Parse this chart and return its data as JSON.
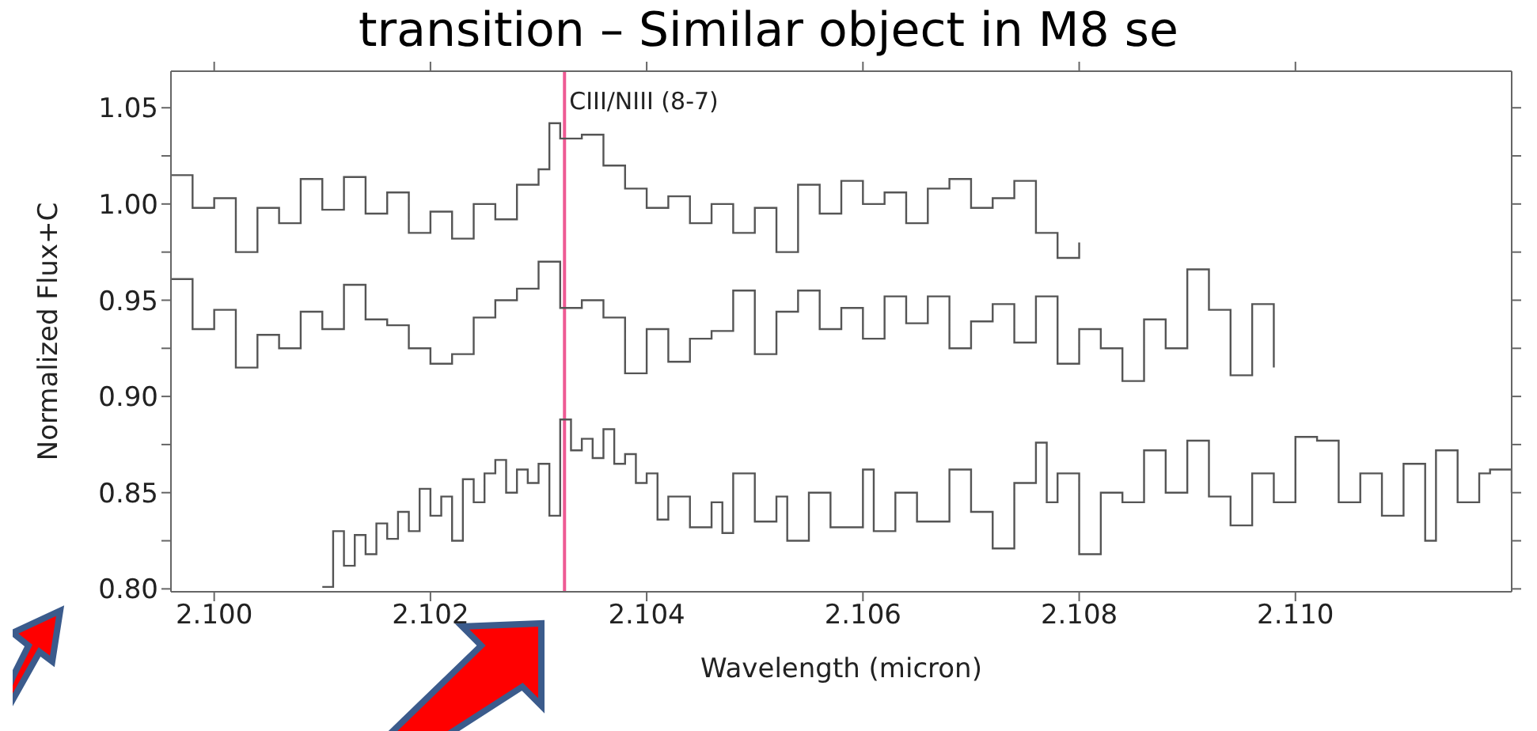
{
  "chart_data": {
    "type": "step",
    "title": "transition – Similar object in M8 se",
    "xlabel": "Wavelength (micron)",
    "ylabel": "Normalized Flux+C",
    "xlim": [
      2.0996,
      2.112
    ],
    "xticks": [
      {
        "value": 2.1,
        "label": "2.100"
      },
      {
        "value": 2.102,
        "label": "2.102"
      },
      {
        "value": 2.104,
        "label": "2.104"
      },
      {
        "value": 2.106,
        "label": "2.106"
      },
      {
        "value": 2.108,
        "label": "2.108"
      },
      {
        "value": 2.11,
        "label": "2.110"
      }
    ],
    "ylim": [
      0.7985,
      1.069
    ],
    "yticks": [
      {
        "value": 0.8,
        "label": "0.80"
      },
      {
        "value": 0.825,
        "label": null
      },
      {
        "value": 0.85,
        "label": "0.85"
      },
      {
        "value": 0.875,
        "label": null
      },
      {
        "value": 0.9,
        "label": "0.90"
      },
      {
        "value": 0.925,
        "label": null
      },
      {
        "value": 0.95,
        "label": "0.95"
      },
      {
        "value": 0.975,
        "label": null
      },
      {
        "value": 1.0,
        "label": "1.00"
      },
      {
        "value": 1.025,
        "label": null
      },
      {
        "value": 1.05,
        "label": "1.05"
      }
    ],
    "legend": false,
    "ref_lines": [
      {
        "axis": "x",
        "value": 2.10324,
        "label": "CIII/NIII (8-7)",
        "color": "#ee5a94"
      }
    ],
    "series": [
      {
        "color": "#555555",
        "x": [
          2.0996,
          2.0998,
          2.1,
          2.1002,
          2.1004,
          2.1006,
          2.1008,
          2.101,
          2.1012,
          2.1014,
          2.1016,
          2.1018,
          2.102,
          2.1022,
          2.1024,
          2.1026,
          2.1028,
          2.103,
          2.1031,
          2.1032,
          2.1034,
          2.1036,
          2.1038,
          2.104,
          2.1042,
          2.1044,
          2.1046,
          2.1048,
          2.105,
          2.1052,
          2.1054,
          2.1056,
          2.1058,
          2.106,
          2.1062,
          2.1064,
          2.1066,
          2.1068,
          2.107,
          2.1072,
          2.1074,
          2.1076,
          2.1078,
          2.108
        ],
        "values": [
          1.015,
          0.998,
          1.003,
          0.975,
          0.998,
          0.99,
          1.013,
          0.997,
          1.014,
          0.995,
          1.006,
          0.985,
          0.996,
          0.982,
          1.0,
          0.992,
          1.01,
          1.018,
          1.042,
          1.034,
          1.036,
          1.02,
          1.008,
          0.998,
          1.004,
          0.99,
          1.0,
          0.985,
          0.998,
          0.975,
          1.01,
          0.995,
          1.012,
          1.0,
          1.006,
          0.99,
          1.008,
          1.013,
          0.998,
          1.003,
          1.012,
          0.985,
          0.972,
          0.98
        ]
      },
      {
        "color": "#555555",
        "x": [
          2.0996,
          2.0998,
          2.1,
          2.1002,
          2.1004,
          2.1006,
          2.1008,
          2.101,
          2.1012,
          2.1014,
          2.1016,
          2.1018,
          2.102,
          2.1022,
          2.1024,
          2.1026,
          2.1028,
          2.103,
          2.1032,
          2.1034,
          2.1036,
          2.1038,
          2.104,
          2.1042,
          2.1044,
          2.1046,
          2.1048,
          2.105,
          2.1052,
          2.1054,
          2.1056,
          2.1058,
          2.106,
          2.1062,
          2.1064,
          2.1066,
          2.1068,
          2.107,
          2.1072,
          2.1074,
          2.1076,
          2.1078,
          2.108,
          2.1082,
          2.1084,
          2.1086,
          2.1088,
          2.109,
          2.1092,
          2.1094,
          2.1096,
          2.1098
        ],
        "values": [
          0.961,
          0.935,
          0.945,
          0.915,
          0.932,
          0.925,
          0.944,
          0.935,
          0.958,
          0.94,
          0.937,
          0.925,
          0.917,
          0.922,
          0.941,
          0.95,
          0.956,
          0.97,
          0.946,
          0.95,
          0.941,
          0.912,
          0.935,
          0.918,
          0.93,
          0.934,
          0.955,
          0.922,
          0.944,
          0.955,
          0.935,
          0.946,
          0.93,
          0.952,
          0.938,
          0.952,
          0.925,
          0.939,
          0.948,
          0.928,
          0.952,
          0.917,
          0.935,
          0.925,
          0.908,
          0.94,
          0.925,
          0.966,
          0.945,
          0.911,
          0.948,
          0.915
        ]
      },
      {
        "color": "#555555",
        "x": [
          2.101,
          2.1011,
          2.1012,
          2.1013,
          2.1014,
          2.1015,
          2.1016,
          2.1017,
          2.1018,
          2.1019,
          2.102,
          2.1021,
          2.1022,
          2.1023,
          2.1024,
          2.1025,
          2.1026,
          2.1027,
          2.1028,
          2.1029,
          2.103,
          2.1031,
          2.1032,
          2.1033,
          2.1034,
          2.1035,
          2.1036,
          2.1037,
          2.1038,
          2.1039,
          2.104,
          2.1041,
          2.1042,
          2.1044,
          2.1046,
          2.1047,
          2.1048,
          2.105,
          2.1052,
          2.1053,
          2.1055,
          2.1057,
          2.106,
          2.1061,
          2.1063,
          2.1065,
          2.1068,
          2.107,
          2.1072,
          2.1074,
          2.1076,
          2.1077,
          2.1078,
          2.108,
          2.1082,
          2.1084,
          2.1086,
          2.1088,
          2.109,
          2.1092,
          2.1094,
          2.1096,
          2.1098,
          2.11,
          2.1102,
          2.1104,
          2.1106,
          2.1108,
          2.111,
          2.1112,
          2.1113,
          2.1115,
          2.1117,
          2.1118,
          2.112
        ],
        "values": [
          0.801,
          0.83,
          0.812,
          0.828,
          0.818,
          0.834,
          0.826,
          0.84,
          0.83,
          0.852,
          0.838,
          0.848,
          0.825,
          0.857,
          0.845,
          0.86,
          0.867,
          0.85,
          0.862,
          0.855,
          0.865,
          0.838,
          0.888,
          0.872,
          0.878,
          0.868,
          0.883,
          0.865,
          0.87,
          0.855,
          0.86,
          0.836,
          0.848,
          0.832,
          0.845,
          0.829,
          0.86,
          0.835,
          0.848,
          0.825,
          0.85,
          0.832,
          0.862,
          0.83,
          0.85,
          0.835,
          0.862,
          0.84,
          0.821,
          0.855,
          0.876,
          0.845,
          0.86,
          0.818,
          0.85,
          0.845,
          0.872,
          0.85,
          0.877,
          0.848,
          0.833,
          0.86,
          0.845,
          0.879,
          0.877,
          0.845,
          0.86,
          0.838,
          0.865,
          0.825,
          0.872,
          0.845,
          0.86,
          0.862,
          0.85
        ]
      }
    ]
  }
}
